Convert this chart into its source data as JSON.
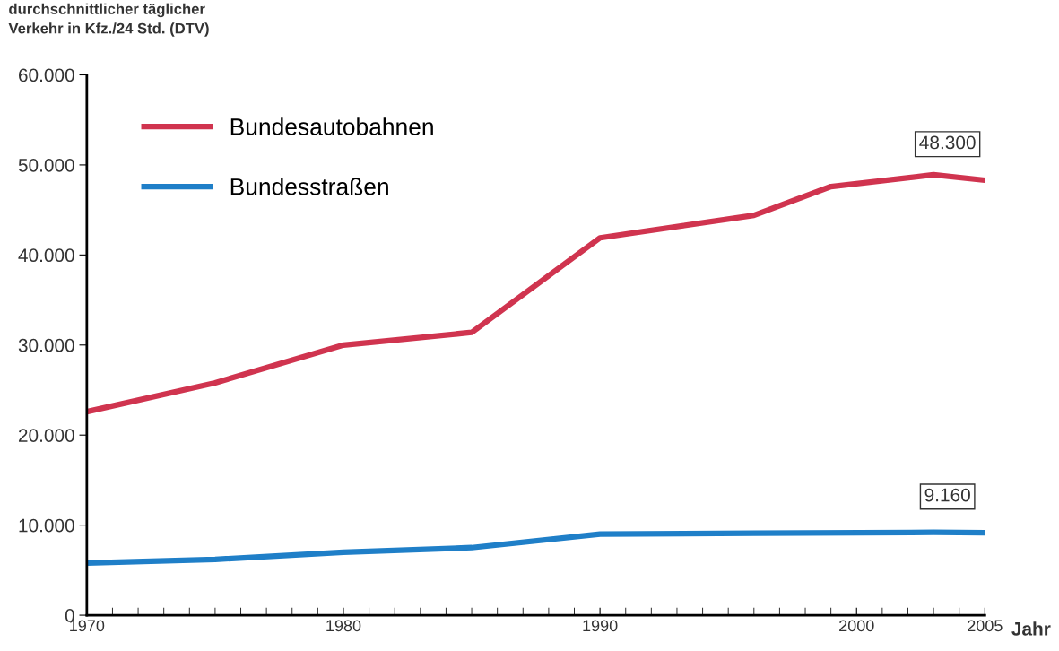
{
  "chart_data": {
    "type": "line",
    "ylabel": "durchschnittlicher täglicher\nVerkehr in Kfz./24 Std. (DTV)",
    "xlabel": "Jahr",
    "series": [
      {
        "name": "Bundesautobahnen",
        "color": "#d0344f",
        "x": [
          1970,
          1975,
          1980,
          1985,
          1990,
          1996,
          1999,
          2003,
          2005
        ],
        "values": [
          22600,
          25800,
          30000,
          31400,
          41900,
          44400,
          47600,
          48900,
          48300
        ]
      },
      {
        "name": "Bundesstraßen",
        "color": "#1f7fc8",
        "x": [
          1970,
          1975,
          1980,
          1985,
          1990,
          1996,
          2003,
          2005
        ],
        "values": [
          5800,
          6200,
          7000,
          7500,
          9000,
          9100,
          9200,
          9160
        ]
      }
    ],
    "annotations": [
      {
        "text": "48.300",
        "x": 2005,
        "y": 48300
      },
      {
        "text": "9.160",
        "x": 2005,
        "y": 9160
      }
    ],
    "xlim": [
      1970,
      2005
    ],
    "xticks": [
      1970,
      1980,
      1990,
      2000,
      2005
    ],
    "ylim": [
      0,
      60000
    ],
    "yticks": [
      {
        "value": 0,
        "label": "0"
      },
      {
        "value": 10000,
        "label": "10.000"
      },
      {
        "value": 20000,
        "label": "20.000"
      },
      {
        "value": 30000,
        "label": "30.000"
      },
      {
        "value": 40000,
        "label": "40.000"
      },
      {
        "value": 50000,
        "label": "50.000"
      },
      {
        "value": 60000,
        "label": "60.000"
      }
    ],
    "legend": "top left",
    "grid": false,
    "marker": "none",
    "line_style": "solid"
  }
}
